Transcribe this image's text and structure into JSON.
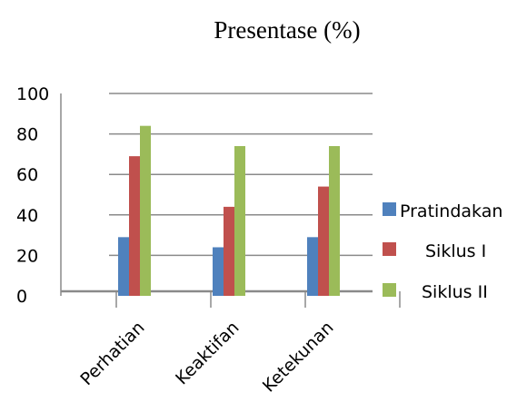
{
  "chart_data": {
    "type": "bar",
    "title": "Presentase (%)",
    "categories": [
      "Perhatian",
      "Keaktifan",
      "Ketekunan"
    ],
    "series": [
      {
        "name": "Pratindakan",
        "values": [
          29,
          24,
          29
        ],
        "color": "#4F81BD"
      },
      {
        "name": "Siklus I",
        "values": [
          69,
          44,
          54
        ],
        "color": "#C0504D"
      },
      {
        "name": "Siklus II",
        "values": [
          84,
          74,
          74
        ],
        "color": "#9BBB59"
      }
    ],
    "yticks": [
      "0",
      "20",
      "40",
      "60",
      "80",
      "100"
    ],
    "ylim": [
      0,
      100
    ],
    "grid": true,
    "legend_position": "right"
  }
}
